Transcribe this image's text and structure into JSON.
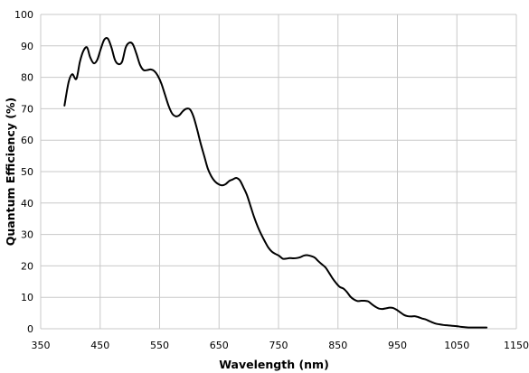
{
  "chart_data": {
    "type": "line",
    "title": "",
    "xlabel": "Wavelength (nm)",
    "ylabel": "Quantum Efficiency (%)",
    "xlim": [
      350,
      1150
    ],
    "ylim": [
      0,
      100
    ],
    "x_ticks": [
      350,
      450,
      550,
      650,
      750,
      850,
      950,
      1050,
      1150
    ],
    "y_ticks": [
      0,
      10,
      20,
      30,
      40,
      50,
      60,
      70,
      80,
      90,
      100
    ],
    "grid": true,
    "legend": "none",
    "line_color": "#000000",
    "series": [
      {
        "x": [
          390,
          397,
          403,
          410,
          416,
          422,
          428,
          433,
          439,
          445,
          451,
          457,
          463,
          469,
          475,
          481,
          487,
          493,
          499,
          505,
          511,
          517,
          523,
          529,
          535,
          541,
          547,
          553,
          559,
          565,
          571,
          577,
          583,
          589,
          595,
          601,
          607,
          613,
          619,
          625,
          631,
          637,
          643,
          649,
          655,
          661,
          667,
          673,
          679,
          685,
          691,
          697,
          703,
          709,
          715,
          721,
          727,
          733,
          739,
          745,
          751,
          757,
          763,
          769,
          775,
          781,
          787,
          793,
          799,
          805,
          811,
          817,
          823,
          829,
          835,
          841,
          847,
          853,
          859,
          865,
          871,
          877,
          883,
          889,
          895,
          901,
          907,
          913,
          919,
          925,
          931,
          937,
          943,
          949,
          955,
          961,
          967,
          973,
          979,
          985,
          991,
          997,
          1003,
          1009,
          1015,
          1021,
          1027,
          1033,
          1039,
          1045,
          1051,
          1057,
          1063,
          1069,
          1075,
          1081,
          1087,
          1093,
          1100
        ],
        "y": [
          71.0,
          78.5,
          81.0,
          79.5,
          85.0,
          88.5,
          89.5,
          86.5,
          84.5,
          85.5,
          89.0,
          92.0,
          92.3,
          89.5,
          85.5,
          84.2,
          85.0,
          89.5,
          91.0,
          90.5,
          87.5,
          84.0,
          82.3,
          82.3,
          82.5,
          82.0,
          80.5,
          78.0,
          74.5,
          71.0,
          68.5,
          67.6,
          67.9,
          69.2,
          70.0,
          69.8,
          67.5,
          63.5,
          59.0,
          55.0,
          51.0,
          48.5,
          46.9,
          46.0,
          45.6,
          46.0,
          47.0,
          47.5,
          48.0,
          47.2,
          45.0,
          42.5,
          39.0,
          35.5,
          32.5,
          30.0,
          27.8,
          25.8,
          24.5,
          23.8,
          23.2,
          22.3,
          22.3,
          22.5,
          22.4,
          22.5,
          22.8,
          23.3,
          23.4,
          23.1,
          22.6,
          21.5,
          20.5,
          19.5,
          17.8,
          16.0,
          14.5,
          13.3,
          12.8,
          11.7,
          10.2,
          9.3,
          8.8,
          8.9,
          8.9,
          8.7,
          7.8,
          7.0,
          6.4,
          6.3,
          6.5,
          6.7,
          6.6,
          6.0,
          5.2,
          4.4,
          4.0,
          3.9,
          4.0,
          3.7,
          3.3,
          3.0,
          2.5,
          2.0,
          1.6,
          1.4,
          1.2,
          1.1,
          1.0,
          0.9,
          0.8,
          0.6,
          0.5,
          0.4,
          0.4,
          0.4,
          0.4,
          0.4,
          0.4
        ]
      }
    ]
  }
}
